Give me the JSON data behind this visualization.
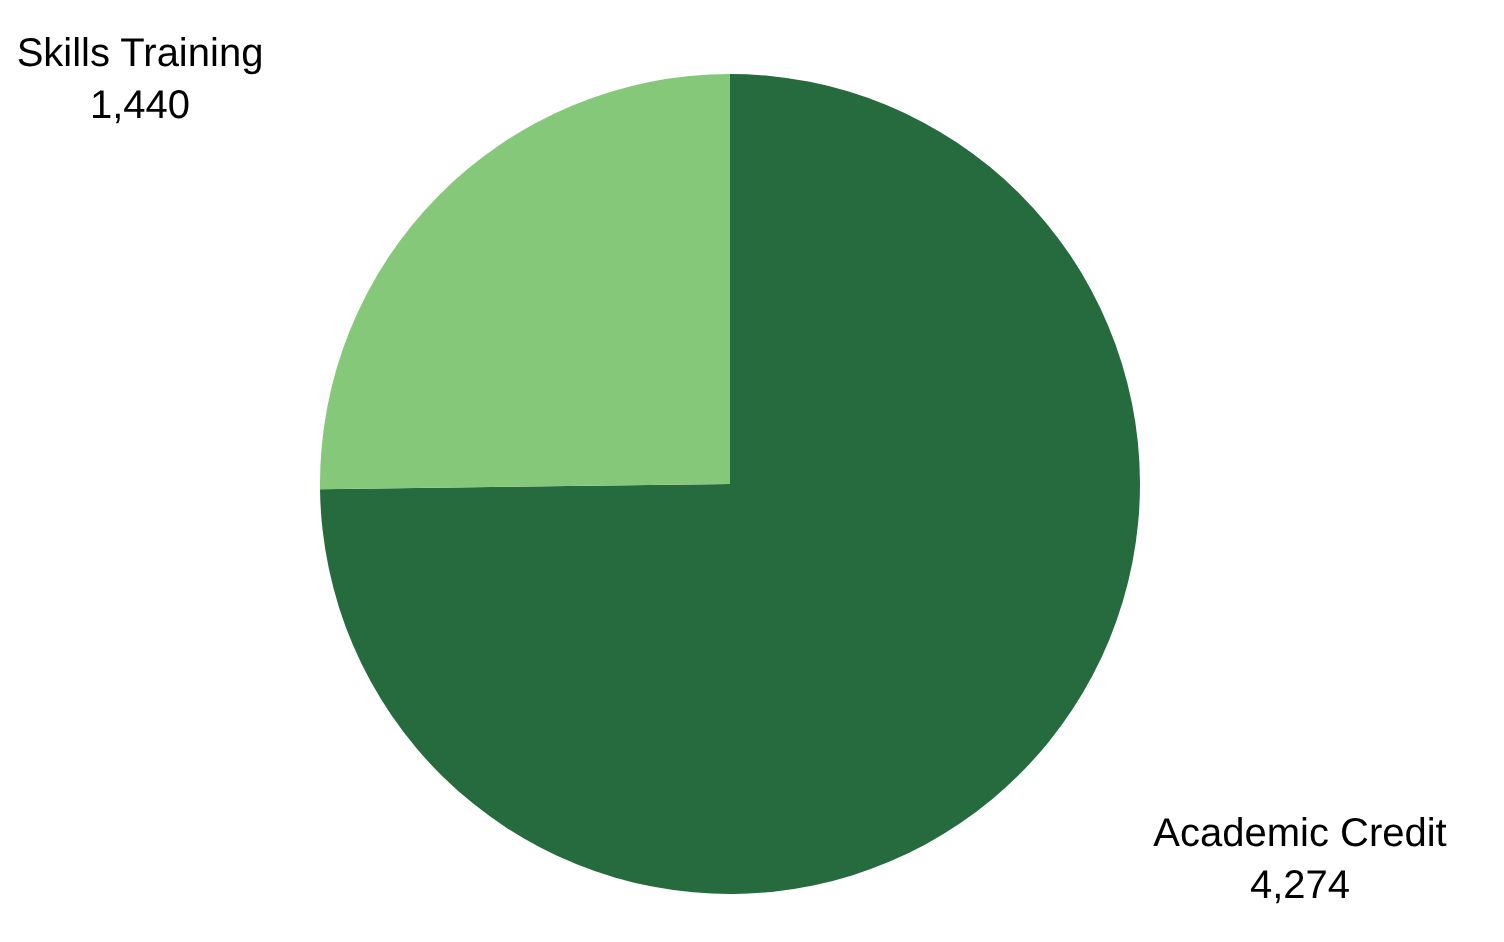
{
  "chart_data": {
    "type": "pie",
    "categories": [
      "Academic Credit",
      "Skills Training"
    ],
    "values": [
      4274,
      1440
    ],
    "colors": [
      "#266b3e",
      "#85c87a"
    ],
    "value_labels": [
      "4,274",
      "1,440"
    ],
    "legend": false
  }
}
